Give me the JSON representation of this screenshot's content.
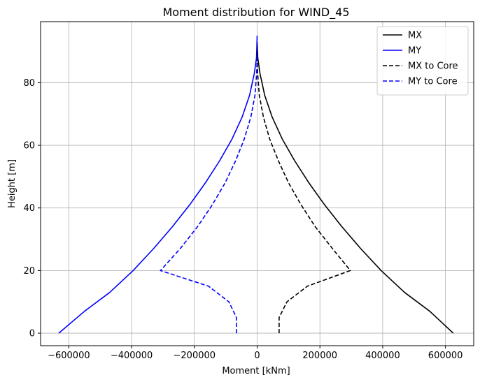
{
  "chart_data": {
    "type": "line",
    "title": "Moment distribution for WIND_45",
    "xlabel": "Moment [kNm]",
    "ylabel": "Height [m]",
    "xlim": [
      -690000,
      690000
    ],
    "ylim": [
      -4,
      99.5
    ],
    "xticks": [
      -600000,
      -400000,
      -200000,
      0,
      200000,
      400000,
      600000
    ],
    "xtick_labels": [
      "−600000",
      "−400000",
      "−200000",
      "0",
      "200000",
      "400000",
      "600000"
    ],
    "yticks": [
      0,
      20,
      40,
      60,
      80
    ],
    "ytick_labels": [
      "0",
      "20",
      "40",
      "60",
      "80"
    ],
    "grid": true,
    "legend_position": "top-right",
    "series": [
      {
        "name": "MX",
        "color": "#000000",
        "style": "solid",
        "points": [
          [
            625000,
            0
          ],
          [
            550000,
            7
          ],
          [
            470000,
            13
          ],
          [
            395000,
            20
          ],
          [
            330000,
            27
          ],
          [
            270000,
            34
          ],
          [
            215000,
            41
          ],
          [
            165000,
            48
          ],
          [
            120000,
            55
          ],
          [
            80000,
            62
          ],
          [
            48000,
            69
          ],
          [
            24000,
            76
          ],
          [
            9000,
            83
          ],
          [
            2000,
            88
          ],
          [
            0,
            93
          ]
        ]
      },
      {
        "name": "MY",
        "color": "#0000ff",
        "style": "solid",
        "points": [
          [
            -632000,
            0
          ],
          [
            -550000,
            7
          ],
          [
            -470000,
            13
          ],
          [
            -395000,
            20
          ],
          [
            -330000,
            27
          ],
          [
            -270000,
            34
          ],
          [
            -215000,
            41
          ],
          [
            -165000,
            48
          ],
          [
            -120000,
            55
          ],
          [
            -80000,
            62
          ],
          [
            -48000,
            69
          ],
          [
            -24000,
            76
          ],
          [
            -9000,
            83
          ],
          [
            -2000,
            88
          ],
          [
            0,
            95
          ]
        ]
      },
      {
        "name": "MX to Core",
        "color": "#000000",
        "style": "dashed",
        "points": [
          [
            70000,
            0
          ],
          [
            70000,
            2
          ],
          [
            70000,
            5
          ],
          [
            95000,
            10
          ],
          [
            160000,
            15
          ],
          [
            297000,
            20
          ],
          [
            240000,
            27
          ],
          [
            185000,
            34
          ],
          [
            140000,
            41
          ],
          [
            100000,
            48
          ],
          [
            68000,
            55
          ],
          [
            40000,
            62
          ],
          [
            20000,
            69
          ],
          [
            7000,
            76
          ],
          [
            1500,
            83
          ],
          [
            0,
            88
          ]
        ]
      },
      {
        "name": "MY to Core",
        "color": "#0000ff",
        "style": "dashed",
        "points": [
          [
            -66000,
            0
          ],
          [
            -66000,
            2
          ],
          [
            -66000,
            5
          ],
          [
            -90000,
            10
          ],
          [
            -155000,
            15
          ],
          [
            -308000,
            20
          ],
          [
            -245000,
            27
          ],
          [
            -190000,
            34
          ],
          [
            -143000,
            41
          ],
          [
            -102000,
            48
          ],
          [
            -69000,
            55
          ],
          [
            -41000,
            62
          ],
          [
            -20000,
            69
          ],
          [
            -7000,
            76
          ],
          [
            -1500,
            83
          ],
          [
            0,
            88
          ]
        ]
      }
    ]
  }
}
